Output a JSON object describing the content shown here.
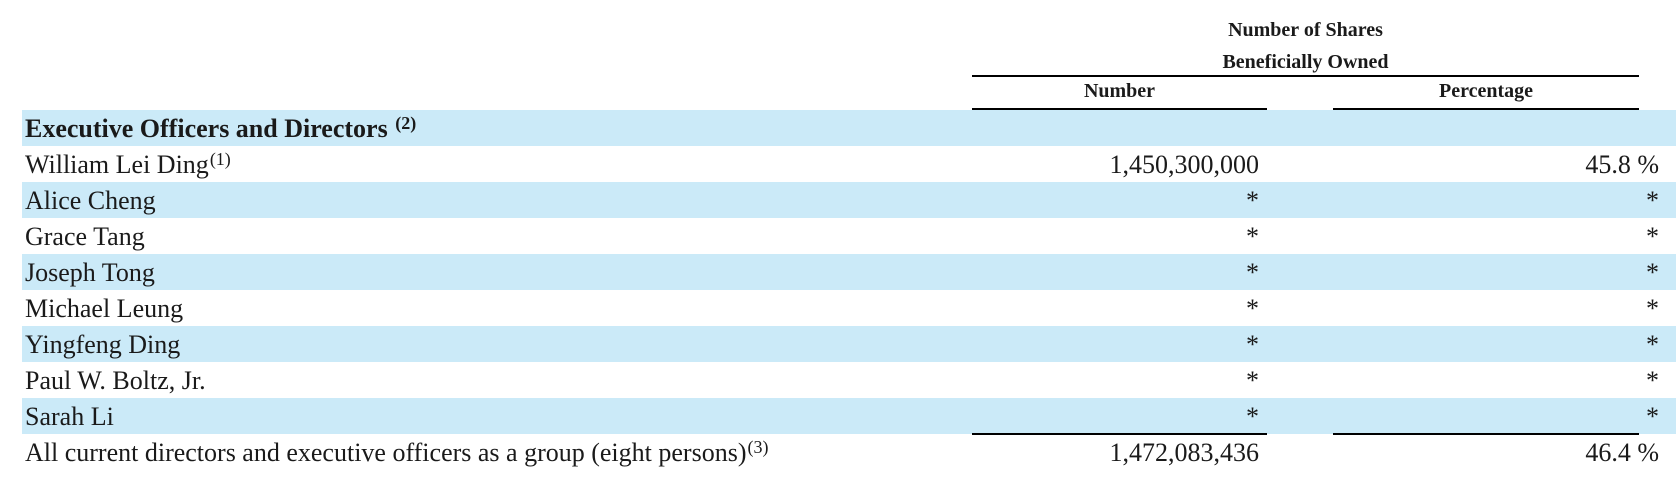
{
  "header": {
    "group_line1": "Number of Shares",
    "group_line2": "Beneficially Owned",
    "col_number": "Number",
    "col_percentage": "Percentage"
  },
  "section": {
    "label": "Executive Officers and Directors",
    "footnote": "(2)"
  },
  "rows": [
    {
      "name": "William Lei Ding",
      "footnote": "(1)",
      "number": "1,450,300,000",
      "percentage": "45.8 %"
    },
    {
      "name": "Alice Cheng",
      "footnote": "",
      "number": "*",
      "percentage": "*"
    },
    {
      "name": "Grace Tang",
      "footnote": "",
      "number": "*",
      "percentage": "*"
    },
    {
      "name": "Joseph Tong",
      "footnote": "",
      "number": "*",
      "percentage": "*"
    },
    {
      "name": "Michael Leung",
      "footnote": "",
      "number": "*",
      "percentage": "*"
    },
    {
      "name": "Yingfeng Ding",
      "footnote": "",
      "number": "*",
      "percentage": "*"
    },
    {
      "name": "Paul W. Boltz, Jr.",
      "footnote": "",
      "number": "*",
      "percentage": "*"
    },
    {
      "name": "Sarah Li",
      "footnote": "",
      "number": "*",
      "percentage": "*"
    }
  ],
  "total": {
    "name": "All current directors and executive officers as a group (eight persons)",
    "footnote": "(3)",
    "number": "1,472,083,436",
    "percentage": "46.4 %"
  },
  "colors": {
    "shade": "#cbeaf8",
    "rule": "#000000"
  }
}
